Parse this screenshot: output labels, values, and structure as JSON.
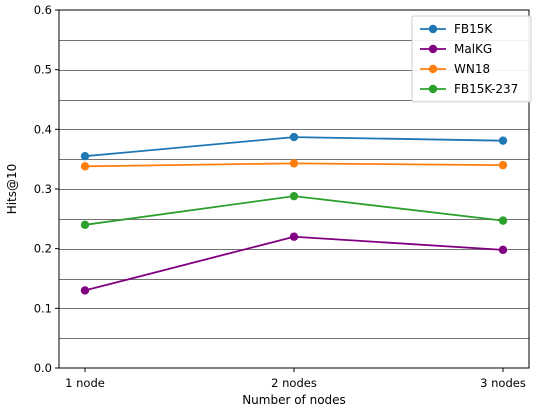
{
  "chart_data": {
    "type": "line",
    "categories": [
      "1 node",
      "2 nodes",
      "3 nodes"
    ],
    "xlabel": "Number of nodes",
    "ylabel": "Hits@10",
    "ylim": [
      0,
      0.6
    ],
    "yticks": [
      "0.0",
      "0.1",
      "0.2",
      "0.3",
      "0.4",
      "0.5",
      "0.6"
    ],
    "grid": true,
    "legend_position": "top-right",
    "series": [
      {
        "name": "FB15K",
        "color": "#1f77b4",
        "values": [
          0.355,
          0.387,
          0.381
        ]
      },
      {
        "name": "MalKG",
        "color": "#800080",
        "values": [
          0.13,
          0.22,
          0.198
        ]
      },
      {
        "name": "WN18",
        "color": "#ff7f0e",
        "values": [
          0.338,
          0.343,
          0.34
        ]
      },
      {
        "name": "FB15K-237",
        "color": "#2ca02c",
        "values": [
          0.24,
          0.288,
          0.247
        ]
      }
    ]
  }
}
